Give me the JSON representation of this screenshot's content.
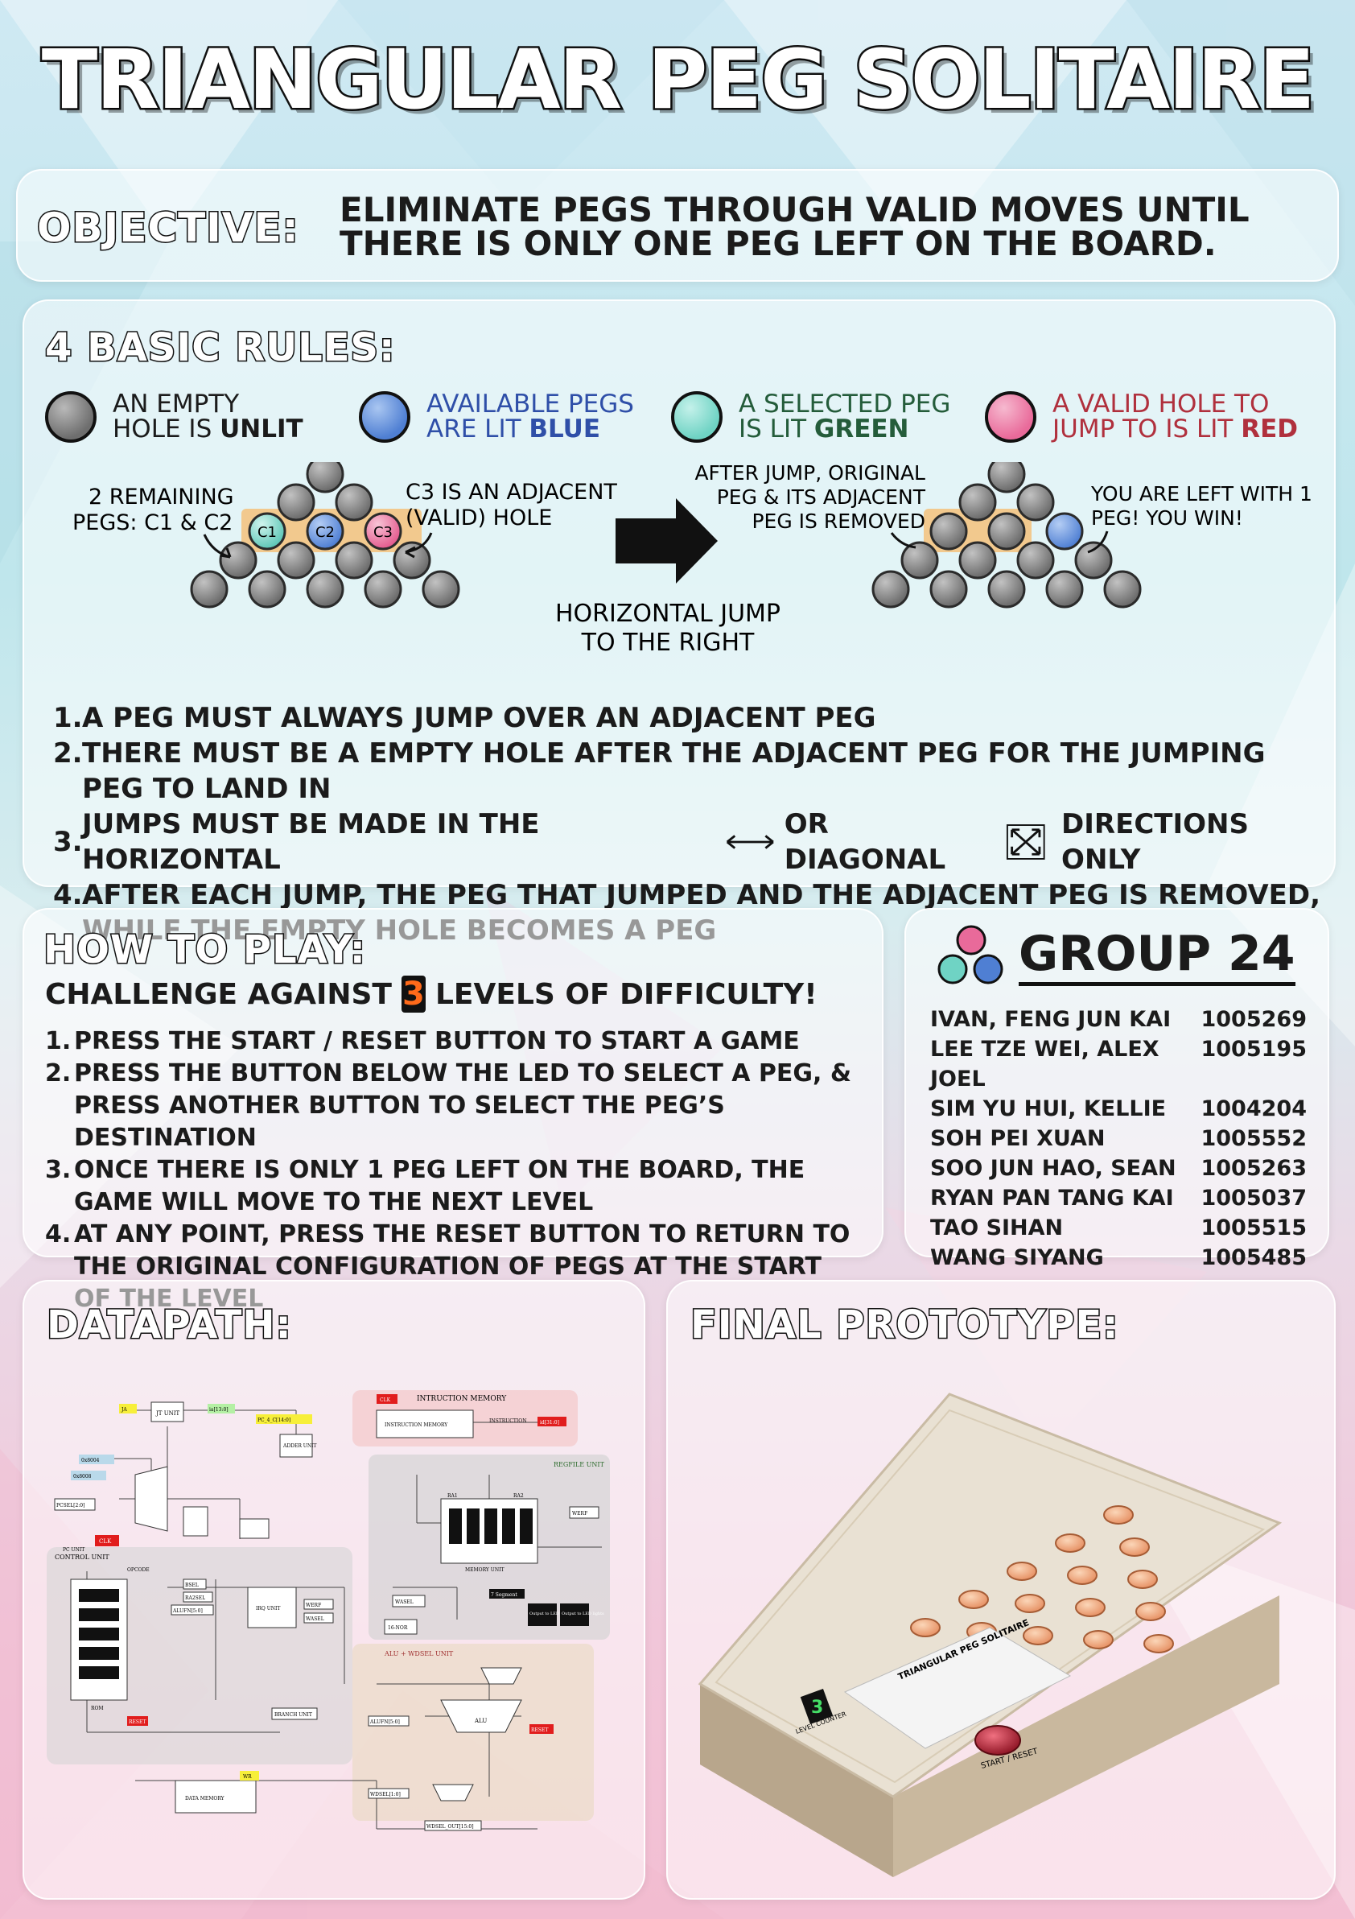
{
  "title": "TRIANGULAR PEG SOLITAIRE",
  "objective": {
    "label": "OBJECTIVE:",
    "text": "ELIMINATE PEGS THROUGH VALID MOVES UNTIL THERE IS ONLY ONE PEG LEFT ON THE BOARD."
  },
  "rules": {
    "label": "4 BASIC RULES:",
    "legend": [
      {
        "line1": "AN EMPTY",
        "line2a": "HOLE IS ",
        "line2b": "UNLIT",
        "color": "#7d7d7d",
        "text_color": "#1b1b1b"
      },
      {
        "line1": "AVAILABLE PEGS",
        "line2a": "ARE LIT ",
        "line2b": "BLUE",
        "color": "#4f7fd3",
        "text_color": "#2f4fa8"
      },
      {
        "line1": "A SELECTED PEG",
        "line2a": "IS LIT ",
        "line2b": "GREEN",
        "color": "#6fd3c4",
        "text_color": "#245c3a"
      },
      {
        "line1": "A VALID HOLE TO",
        "line2a": "JUMP TO IS LIT ",
        "line2b": "RED",
        "color": "#e96a9a",
        "text_color": "#b0303d"
      }
    ],
    "diagram": {
      "remaining_a": "2 REMAINING",
      "remaining_b": "PEGS: C1 & C2",
      "adjacent_a": "C3 IS AN ADJACENT",
      "adjacent_b": "(VALID) HOLE",
      "c1": "C1",
      "c2": "C2",
      "c3": "C3",
      "jump_a": "HORIZONTAL JUMP",
      "jump_b": "TO THE RIGHT",
      "after_a": "AFTER JUMP, ORIGINAL",
      "after_b": "PEG & ITS ADJACENT",
      "after_c": "PEG IS REMOVED",
      "win_a": "YOU ARE LEFT WITH 1",
      "win_b": "PEG! YOU WIN!"
    },
    "items": [
      {
        "num": "1.",
        "text": "A PEG MUST ALWAYS JUMP OVER AN ADJACENT PEG"
      },
      {
        "num": "2.",
        "text": "THERE MUST BE A EMPTY HOLE AFTER THE ADJACENT PEG FOR THE JUMPING PEG TO LAND IN"
      },
      {
        "num": "3.",
        "text_a": "JUMPS MUST BE MADE IN THE HORIZONTAL",
        "text_b": "OR DIAGONAL",
        "text_c": "DIRECTIONS ONLY"
      },
      {
        "num": "4.",
        "text": "AFTER EACH JUMP, THE PEG THAT JUMPED AND THE ADJACENT PEG IS REMOVED, WHILE THE EMPTY HOLE BECOMES A PEG"
      }
    ]
  },
  "howto": {
    "label": "HOW TO PLAY:",
    "challenge_a": "CHALLENGE AGAINST",
    "levels_digit": "3",
    "challenge_b": "LEVELS OF DIFFICULTY!",
    "items": [
      {
        "num": "1.",
        "text": "PRESS THE START / RESET BUTTON TO START A GAME"
      },
      {
        "num": "2.",
        "text": "PRESS THE BUTTON BELOW THE LED TO SELECT A PEG, & PRESS ANOTHER BUTTON TO SELECT THE PEG’S DESTINATION"
      },
      {
        "num": "3.",
        "text": "ONCE THERE IS ONLY 1 PEG LEFT ON THE BOARD, THE GAME WILL MOVE TO THE NEXT LEVEL"
      },
      {
        "num": "4.",
        "text": "AT ANY POINT, PRESS THE RESET BUTTON TO RETURN TO THE ORIGINAL CONFIGURATION OF PEGS AT THE START OF THE LEVEL"
      }
    ]
  },
  "group": {
    "title": "GROUP 24",
    "members": [
      {
        "name": "IVAN, FENG JUN KAI",
        "id": "1005269"
      },
      {
        "name": "LEE TZE WEI, ALEX JOEL",
        "id": "1005195"
      },
      {
        "name": "SIM YU HUI, KELLIE",
        "id": "1004204"
      },
      {
        "name": "SOH PEI XUAN",
        "id": "1005552"
      },
      {
        "name": "SOO JUN HAO, SEAN",
        "id": "1005263"
      },
      {
        "name": "RYAN PAN TANG KAI",
        "id": "1005037"
      },
      {
        "name": "TAO SIHAN",
        "id": "1005515"
      },
      {
        "name": "WANG SIYANG",
        "id": "1005485"
      }
    ]
  },
  "datapath": {
    "label": "DATAPATH:",
    "blocks": {
      "ja": "JA",
      "jt": "JT UNIT",
      "pc4": "PC_4_C[14:0]",
      "ia": "ia[13:0]",
      "clk": "CLK",
      "imem": "INSTRUCTION MEMORY",
      "imem_title": "INTRUCTION MEMORY",
      "instr": "INSTRUCTION",
      "id": "id[31:0]",
      "adder": "ADDER UNIT",
      "x8004": "0x8004",
      "x8008": "0x8008",
      "pcsel": "PCSEL[2:0]",
      "pcunit": "PC UNIT",
      "regfile": "REGFILE UNIT",
      "ra1": "RA1",
      "ra2": "RA2",
      "werf": "WERF",
      "wasel": "WASEL",
      "memunit": "MEMORY UNIT",
      "seg7": "7 Segment",
      "led": "Output to LED lights",
      "control": "CONTROL UNIT",
      "opcode": "OPCODE",
      "rom": "ROM",
      "irq": "IRQ UNIT",
      "branch": "BRANCH UNIT",
      "bsel": "BSEL",
      "ra2sel": "RA2SEL",
      "alufn": "ALUFN[5:0]",
      "werf2": "WERF",
      "wasel2": "WASEL",
      "aluwd": "ALU + WDSEL UNIT",
      "alu": "ALU",
      "nor16": "16-NOR",
      "datamem": "DATA MEMORY",
      "wdsel": "WDSEL[1:0]",
      "wdselout": "WDSEL_OUT[15:0]",
      "reset": "RESET",
      "wr": "WR"
    }
  },
  "prototype": {
    "label": "FINAL PROTOTYPE:",
    "board_title": "TRIANGULAR PEG SOLITAIRE",
    "start_reset": "START / RESET",
    "level_counter": "LEVEL COUNTER",
    "level_digit": "3"
  },
  "colors": {
    "empty": "#7d7d7d",
    "blue": "#4f7fd3",
    "green": "#6fd3c4",
    "red": "#e96a9a",
    "highlight": "#f2c98e"
  }
}
